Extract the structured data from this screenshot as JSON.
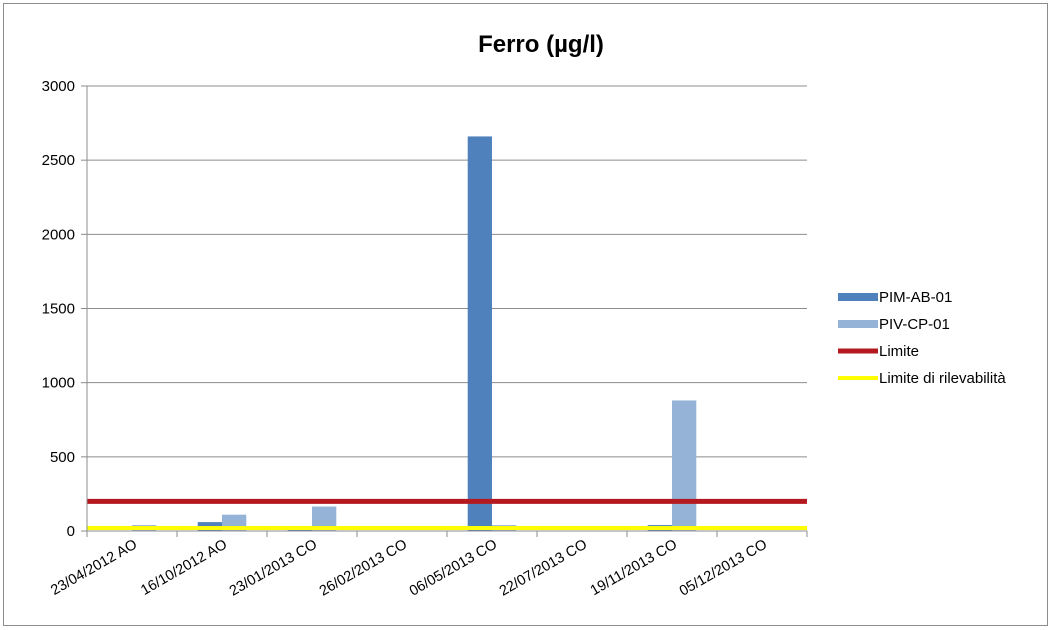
{
  "chart_data": {
    "type": "bar",
    "title": "Ferro (µg/l)",
    "xlabel": "",
    "ylabel": "",
    "ylim": [
      0,
      3000
    ],
    "yticks": [
      0,
      500,
      1000,
      1500,
      2000,
      2500,
      3000
    ],
    "grid": true,
    "legend_position": "right",
    "categories": [
      "23/04/2012 AO",
      "16/10/2012 AO",
      "23/01/2013 CO",
      "26/02/2013 CO",
      "06/05/2013 CO",
      "22/07/2013 CO",
      "19/11/2013 CO",
      "05/12/2013 CO"
    ],
    "series": [
      {
        "name": "PIM-AB-01",
        "type": "bar",
        "color": "#4f81bd",
        "values": [
          null,
          60,
          25,
          null,
          2660,
          null,
          40,
          null
        ]
      },
      {
        "name": "PIV-CP-01",
        "type": "bar",
        "color": "#95b3d7",
        "values": [
          40,
          110,
          165,
          null,
          40,
          null,
          880,
          null
        ]
      },
      {
        "name": "Limite",
        "type": "line",
        "color": "#b3191f",
        "values": [
          200,
          200,
          200,
          200,
          200,
          200,
          200,
          200
        ]
      },
      {
        "name": "Limite di rilevabilità",
        "type": "line",
        "color": "#ffff00",
        "values": [
          20,
          20,
          20,
          20,
          20,
          20,
          20,
          20
        ]
      }
    ]
  }
}
